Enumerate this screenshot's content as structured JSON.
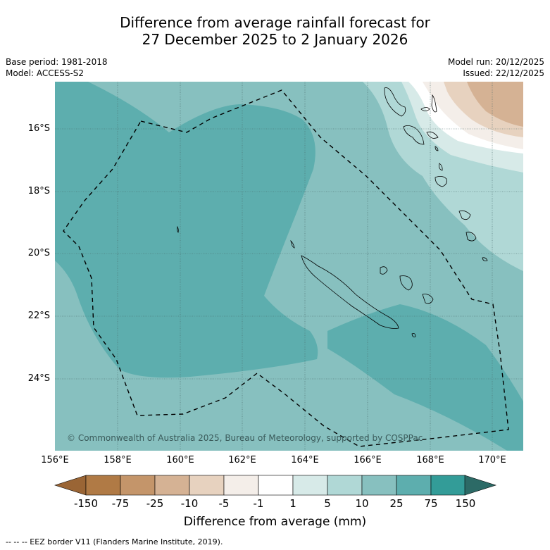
{
  "title": {
    "line1": "Difference from average rainfall forecast for",
    "line2": "27 December 2025 to 2 January 2026"
  },
  "meta": {
    "base_period": "Base period: 1981-2018",
    "model": "Model: ACCESS-S2",
    "model_run": "Model run: 20/12/2025",
    "issued": "Issued: 22/12/2025"
  },
  "axes": {
    "lat_labels": [
      "16°S",
      "18°S",
      "20°S",
      "22°S",
      "24°S"
    ],
    "lon_labels": [
      "156°E",
      "158°E",
      "160°E",
      "162°E",
      "164°E",
      "166°E",
      "168°E",
      "170°E"
    ]
  },
  "copyright": "© Commonwealth of Australia 2025, Bureau of Meteorology, supported by COSPPac",
  "colorbar": {
    "ticks": [
      "-150",
      "-75",
      "-25",
      "-10",
      "-5",
      "-1",
      "1",
      "5",
      "10",
      "25",
      "75",
      "150"
    ],
    "colors": [
      "#b07a45",
      "#c4956a",
      "#d5b294",
      "#e7d2bf",
      "#f4eee9",
      "#ffffff",
      "#d7eae8",
      "#b0d8d6",
      "#87c0bf",
      "#5daeae",
      "#339c98",
      "#2f7b77"
    ],
    "title": "Difference from average (mm)"
  },
  "footer": "--  --  -- EEZ border V11 (Flanders Marine Institute, 2019)."
}
